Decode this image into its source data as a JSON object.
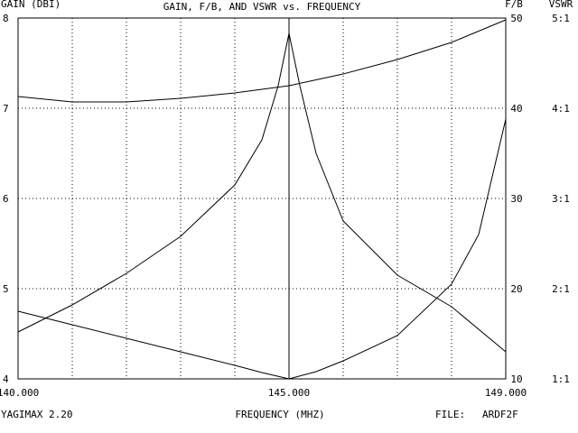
{
  "chart_data": {
    "type": "line",
    "title": "GAIN, F/B, AND VSWR vs. FREQUENCY",
    "xlabel": "FREQUENCY (MHZ)",
    "xlim": [
      140,
      149
    ],
    "x_ticks": [
      140,
      141,
      142,
      143,
      144,
      145,
      146,
      147,
      148,
      149
    ],
    "x_tick_labels": [
      "140.000",
      "145.000",
      "149.000"
    ],
    "y_left": {
      "label": "GAIN (DBI)",
      "lim": [
        4,
        8
      ],
      "ticks": [
        "4",
        "5",
        "6",
        "7",
        "8"
      ]
    },
    "y_right_fb": {
      "label": "F/B",
      "lim": [
        10,
        50
      ],
      "ticks": [
        "10",
        "20",
        "30",
        "40",
        "50"
      ]
    },
    "y_right_vswr": {
      "label": "VSWR",
      "lim": [
        1,
        5
      ],
      "ticks": [
        "1:1",
        "2:1",
        "3:1",
        "4:1",
        "5:1"
      ]
    },
    "series": [
      {
        "axis": "gain",
        "x": [
          140,
          141,
          142,
          143,
          144,
          145,
          146,
          147,
          148,
          149
        ],
        "y": [
          7.13,
          7.07,
          7.07,
          7.11,
          7.17,
          7.25,
          7.38,
          7.54,
          7.73,
          7.98
        ]
      },
      {
        "axis": "fb",
        "x": [
          140,
          141,
          142,
          143,
          144,
          144.5,
          144.8,
          145,
          145.2,
          145.5,
          146,
          147,
          148,
          149
        ],
        "y": [
          15.2,
          18.2,
          21.7,
          25.8,
          31.5,
          36.5,
          42.5,
          48.3,
          42.5,
          35,
          27.5,
          21.5,
          18,
          13
        ]
      },
      {
        "axis": "vswr",
        "x": [
          140,
          141,
          142,
          143,
          144,
          144.5,
          145,
          145.5,
          146,
          147,
          148,
          148.5,
          149
        ],
        "y": [
          1.75,
          1.6,
          1.45,
          1.3,
          1.15,
          1.07,
          1.0,
          1.08,
          1.2,
          1.48,
          2.05,
          2.6,
          3.88
        ]
      }
    ]
  },
  "footer": {
    "program": "YAGIMAX 2.20",
    "file_label": "FILE:",
    "file_name": "ARDF2F"
  }
}
